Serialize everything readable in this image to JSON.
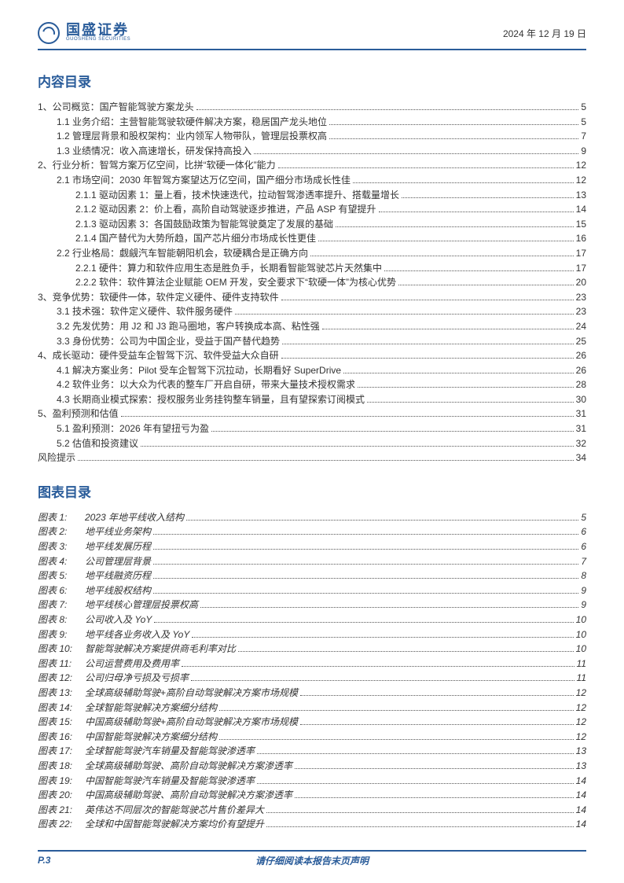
{
  "header": {
    "company_cn": "国盛证券",
    "company_en": "GUOSHENG SECURITIES",
    "date": "2024 年 12 月 19 日"
  },
  "sections": {
    "toc_title": "内容目录",
    "fig_title": "图表目录"
  },
  "toc": [
    {
      "level": 1,
      "text": "1、公司概览：国产智能驾驶方案龙头",
      "page": "5"
    },
    {
      "level": 2,
      "text": "1.1 业务介绍：主营智能驾驶软硬件解决方案，稳居国产龙头地位",
      "page": "5"
    },
    {
      "level": 2,
      "text": "1.2 管理层背景和股权架构：业内领军人物带队，管理层投票权高",
      "page": "7"
    },
    {
      "level": 2,
      "text": "1.3 业绩情况：收入高速增长，研发保持高投入",
      "page": "9"
    },
    {
      "level": 1,
      "text": "2、行业分析：智驾方案万亿空间，比拼“软硬一体化”能力",
      "page": "12"
    },
    {
      "level": 2,
      "text": "2.1 市场空间：2030 年智驾方案望达万亿空间，国产细分市场成长性佳",
      "page": "12"
    },
    {
      "level": 3,
      "text": "2.1.1 驱动因素 1：量上看，技术快速迭代，拉动智驾渗透率提升、搭载量增长",
      "page": "13"
    },
    {
      "level": 3,
      "text": "2.1.2 驱动因素 2：价上看，高阶自动驾驶逐步推进，产品 ASP 有望提升",
      "page": "14"
    },
    {
      "level": 3,
      "text": "2.1.3 驱动因素 3：各国鼓励政策为智能驾驶奠定了发展的基础",
      "page": "15"
    },
    {
      "level": 3,
      "text": "2.1.4 国产替代为大势所趋，国产芯片细分市场成长性更佳",
      "page": "16"
    },
    {
      "level": 2,
      "text": "2.2 行业格局：觑觎汽车智能朝阳机会，软硬耦合是正确方向",
      "page": "17"
    },
    {
      "level": 3,
      "text": "2.2.1 硬件：算力和软件应用生态是胜负手，长期看智能驾驶芯片天然集中",
      "page": "17"
    },
    {
      "level": 3,
      "text": "2.2.2 软件：软件算法企业赋能 OEM 开发，安全要求下“软硬一体”为核心优势",
      "page": "20"
    },
    {
      "level": 1,
      "text": "3、竞争优势：软硬件一体，软件定义硬件、硬件支持软件",
      "page": "23"
    },
    {
      "level": 2,
      "text": "3.1 技术强：软件定义硬件、软件服务硬件",
      "page": "23"
    },
    {
      "level": 2,
      "text": "3.2 先发优势：用 J2 和 J3 跑马圈地，客户转换成本高、粘性强",
      "page": "24"
    },
    {
      "level": 2,
      "text": "3.3 身份优势：公司为中国企业，受益于国产替代趋势",
      "page": "25"
    },
    {
      "level": 1,
      "text": "4、成长驱动：硬件受益车企智驾下沉、软件受益大众自研",
      "page": "26"
    },
    {
      "level": 2,
      "text": "4.1 解决方案业务：Pilot 受车企智驾下沉拉动，长期看好 SuperDrive",
      "page": "26"
    },
    {
      "level": 2,
      "text": "4.2 软件业务：以大众为代表的整车厂开启自研，带来大量技术授权需求",
      "page": "28"
    },
    {
      "level": 2,
      "text": "4.3 长期商业模式探索：授权服务业务挂钩整车销量，且有望探索订阅模式",
      "page": "30"
    },
    {
      "level": 1,
      "text": "5、盈利预测和估值",
      "page": "31"
    },
    {
      "level": 2,
      "text": "5.1 盈利预测：2026 年有望扭亏为盈",
      "page": "31"
    },
    {
      "level": 2,
      "text": "5.2 估值和投资建议",
      "page": "32"
    },
    {
      "level": 1,
      "text": "风险提示",
      "page": "34"
    }
  ],
  "figures": [
    {
      "label": "图表 1:",
      "text": "2023 年地平线收入结构",
      "page": "5"
    },
    {
      "label": "图表 2:",
      "text": "地平线业务架构",
      "page": "6"
    },
    {
      "label": "图表 3:",
      "text": "地平线发展历程",
      "page": "6"
    },
    {
      "label": "图表 4:",
      "text": "公司管理层背景",
      "page": "7"
    },
    {
      "label": "图表 5:",
      "text": "地平线融资历程",
      "page": "8"
    },
    {
      "label": "图表 6:",
      "text": "地平线股权结构",
      "page": "9"
    },
    {
      "label": "图表 7:",
      "text": "地平线核心管理层投票权高",
      "page": "9"
    },
    {
      "label": "图表 8:",
      "text": "公司收入及 YoY",
      "page": "10"
    },
    {
      "label": "图表 9:",
      "text": "地平线各业务收入及 YoY",
      "page": "10"
    },
    {
      "label": "图表 10:",
      "text": "智能驾驶解决方案提供商毛利率对比",
      "page": "10"
    },
    {
      "label": "图表 11:",
      "text": "公司运营费用及费用率",
      "page": "11"
    },
    {
      "label": "图表 12:",
      "text": "公司归母净亏损及亏损率",
      "page": "11"
    },
    {
      "label": "图表 13:",
      "text": "全球高级辅助驾驶+高阶自动驾驶解决方案市场规模",
      "page": "12"
    },
    {
      "label": "图表 14:",
      "text": "全球智能驾驶解决方案细分结构",
      "page": "12"
    },
    {
      "label": "图表 15:",
      "text": "中国高级辅助驾驶+高阶自动驾驶解决方案市场规模",
      "page": "12"
    },
    {
      "label": "图表 16:",
      "text": "中国智能驾驶解决方案细分结构",
      "page": "12"
    },
    {
      "label": "图表 17:",
      "text": "全球智能驾驶汽车销量及智能驾驶渗透率",
      "page": "13"
    },
    {
      "label": "图表 18:",
      "text": "全球高级辅助驾驶、高阶自动驾驶解决方案渗透率",
      "page": "13"
    },
    {
      "label": "图表 19:",
      "text": "中国智能驾驶汽车销量及智能驾驶渗透率",
      "page": "14"
    },
    {
      "label": "图表 20:",
      "text": "中国高级辅助驾驶、高阶自动驾驶解决方案渗透率",
      "page": "14"
    },
    {
      "label": "图表 21:",
      "text": "英伟达不同层次的智能驾驶芯片售价差异大",
      "page": "14"
    },
    {
      "label": "图表 22:",
      "text": "全球和中国智能驾驶解决方案均价有望提升",
      "page": "14"
    }
  ],
  "footer": {
    "page": "P.3",
    "note": "请仔细阅读本报告末页声明"
  },
  "colors": {
    "brand": "#2a5c9a",
    "text": "#333333",
    "bg": "#ffffff"
  }
}
